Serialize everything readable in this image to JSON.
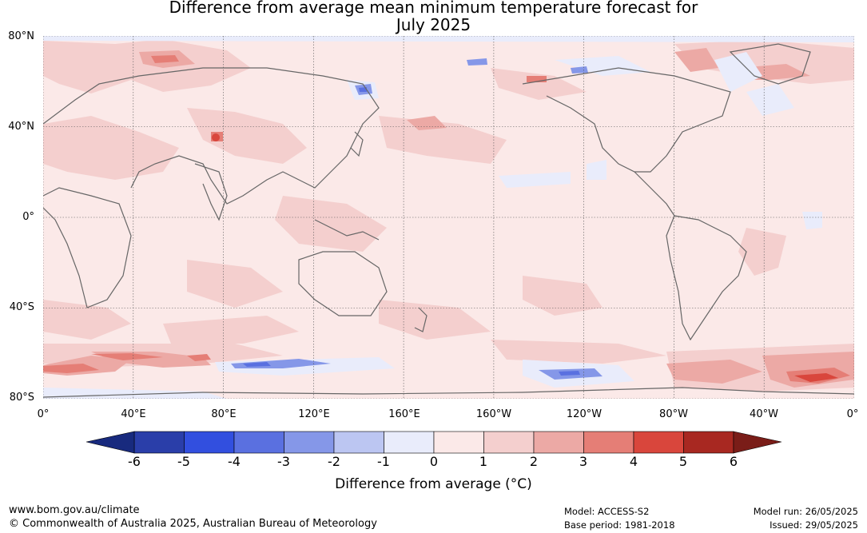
{
  "title": {
    "line1": "Difference from average mean minimum temperature forecast for",
    "line2": "July 2025"
  },
  "map": {
    "lat_labels": [
      "80°N",
      "40°N",
      "0°",
      "40°S",
      "80°S"
    ],
    "lon_labels": [
      "0°",
      "40°E",
      "80°E",
      "120°E",
      "160°E",
      "160°W",
      "120°W",
      "80°W",
      "40°W",
      "0°"
    ],
    "background_color": "#fbe9e8",
    "coastline_color": "#666666",
    "extent": {
      "lon": [
        0,
        360
      ],
      "lat": [
        -80,
        80
      ]
    },
    "anomaly_regions": [
      {
        "label": "0 to 1",
        "color": "#fbe9e8",
        "description": "background"
      }
    ]
  },
  "colorbar": {
    "label": "Difference from average (°C)",
    "ticks": [
      "-6",
      "-5",
      "-4",
      "-3",
      "-2",
      "-1",
      "0",
      "1",
      "2",
      "3",
      "4",
      "5",
      "6"
    ],
    "low_extend_color": "#182a7e",
    "high_extend_color": "#7a1d18",
    "bin_colors": [
      "#2a3ea9",
      "#324fdf",
      "#5a70e0",
      "#8597e8",
      "#bcc6f2",
      "#e9ecfb",
      "#fbe9e8",
      "#f4cfce",
      "#eca9a5",
      "#e57e76",
      "#d9463c",
      "#a82821"
    ]
  },
  "footer": {
    "website": "www.bom.gov.au/climate",
    "copyright": "© Commonwealth of Australia 2025, Australian Bureau of Meteorology",
    "model": "Model: ACCESS-S2",
    "base_period": "Base period: 1981-2018",
    "model_run": "Model run: 26/05/2025",
    "issued": "Issued: 29/05/2025"
  }
}
